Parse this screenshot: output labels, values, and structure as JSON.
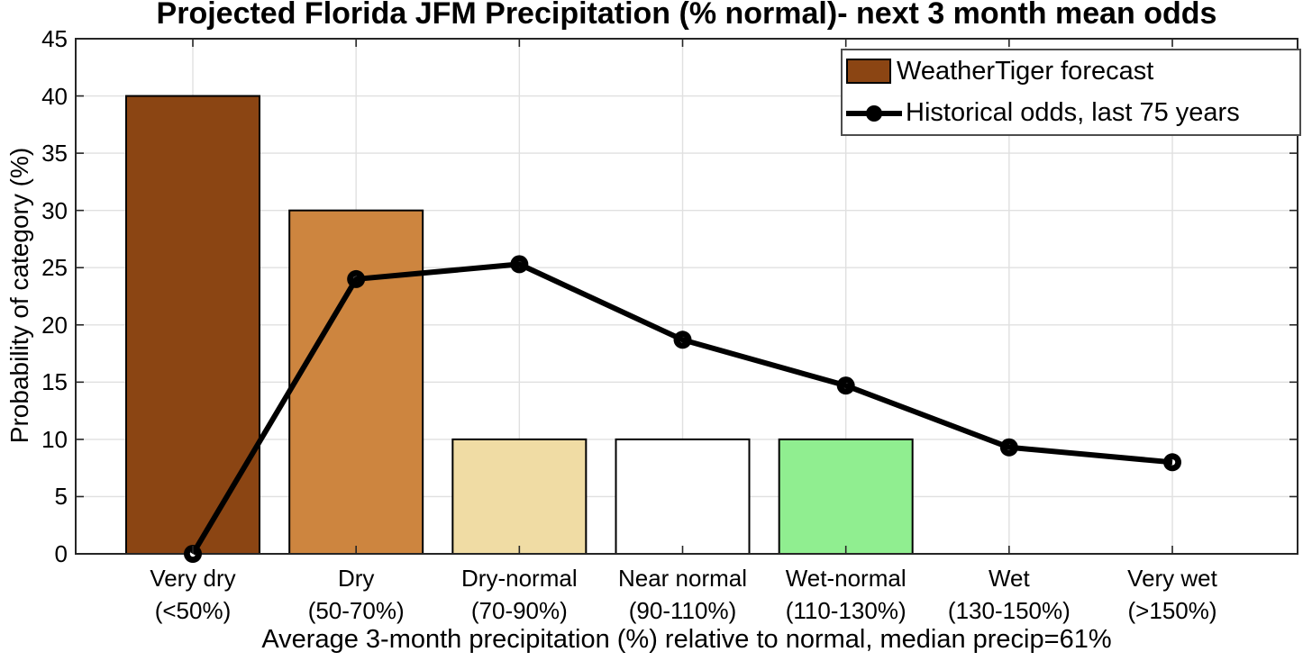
{
  "chart_data": {
    "type": "bar",
    "title": "Projected Florida JFM Precipitation (% normal)- next 3 month mean odds",
    "xlabel": "Average 3-month precipitation (%) relative to normal, median precip=61%",
    "ylabel": "Probability of category (%)",
    "ylim": [
      0,
      45
    ],
    "yticks": [
      0,
      5,
      10,
      15,
      20,
      25,
      30,
      35,
      40,
      45
    ],
    "grid": true,
    "legend_position": "top-right",
    "categories": [
      {
        "label": "Very dry",
        "range": "(<50%)"
      },
      {
        "label": "Dry",
        "range": "(50-70%)"
      },
      {
        "label": "Dry-normal",
        "range": "(70-90%)"
      },
      {
        "label": "Near normal",
        "range": "(90-110%)"
      },
      {
        "label": "Wet-normal",
        "range": "(110-130%)"
      },
      {
        "label": "Wet",
        "range": "(130-150%)"
      },
      {
        "label": "Very wet",
        "range": "(>150%)"
      }
    ],
    "series": [
      {
        "name": "WeatherTiger forecast",
        "type": "bar",
        "values": [
          40,
          30,
          10,
          10,
          10,
          0,
          0
        ],
        "colors": [
          "#8B4513",
          "#CD853F",
          "#F0DCA4",
          "#FFFFFF",
          "#90EE90",
          null,
          null
        ],
        "edge_color": "#000000",
        "legend_color": "#8B4513"
      },
      {
        "name": "Historical odds, last 75 years",
        "type": "line",
        "values": [
          0,
          24,
          25.3,
          18.7,
          14.7,
          9.3,
          8
        ],
        "color": "#000000",
        "marker": "circle"
      }
    ]
  },
  "colors": {
    "grid": "#E0E0E0",
    "axis": "#262626",
    "background": "#FFFFFF"
  }
}
